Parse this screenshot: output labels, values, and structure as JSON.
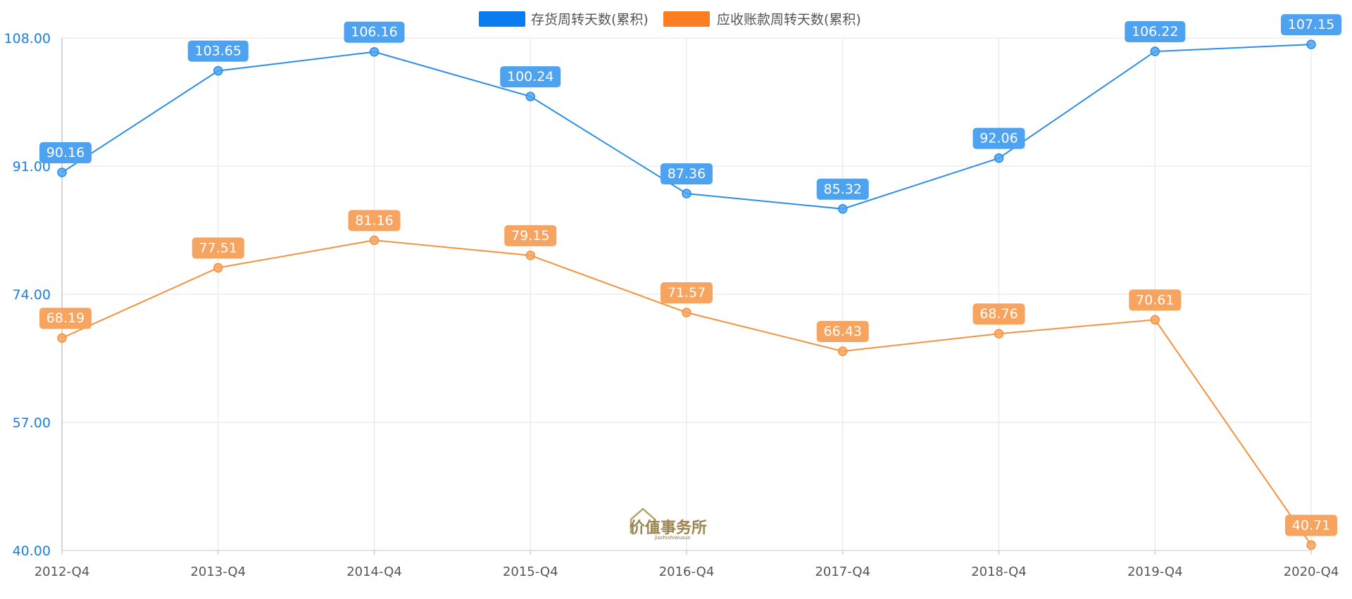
{
  "chart_data": {
    "type": "line",
    "categories": [
      "2012-Q4",
      "2013-Q4",
      "2014-Q4",
      "2015-Q4",
      "2016-Q4",
      "2017-Q4",
      "2018-Q4",
      "2019-Q4",
      "2020-Q4"
    ],
    "series": [
      {
        "name": "存货周转天数(累积)",
        "color": "#2b8ee8",
        "label_color": "#4ea3f1",
        "values": [
          90.16,
          103.65,
          106.16,
          100.24,
          87.36,
          85.32,
          92.06,
          106.22,
          107.15
        ],
        "labels": [
          "90.16",
          "103.65",
          "106.16",
          "100.24",
          "87.36",
          "85.32",
          "92.06",
          "106.22",
          "107.15"
        ]
      },
      {
        "name": "应收账款周转天数(累积)",
        "color": "#f5923e",
        "label_color": "#f7a461",
        "values": [
          68.19,
          77.51,
          81.16,
          79.15,
          71.57,
          66.43,
          68.76,
          70.61,
          40.71
        ],
        "labels": [
          "68.19",
          "77.51",
          "81.16",
          "79.15",
          "71.57",
          "66.43",
          "68.76",
          "70.61",
          "40.71"
        ]
      }
    ],
    "ylim": [
      40,
      108
    ],
    "yticks": [
      40,
      57,
      74,
      91,
      108
    ],
    "ytick_labels": [
      "40.00",
      "57.00",
      "74.00",
      "91.00",
      "108.00"
    ],
    "grid": true,
    "legend_position": "top-center",
    "legend_colors": [
      "#0a7cf0",
      "#fb7d21"
    ],
    "xlabel": "",
    "ylabel": "",
    "title": ""
  },
  "watermark": {
    "text": "价值事务所",
    "sub": "jiazhishiwusuo"
  }
}
